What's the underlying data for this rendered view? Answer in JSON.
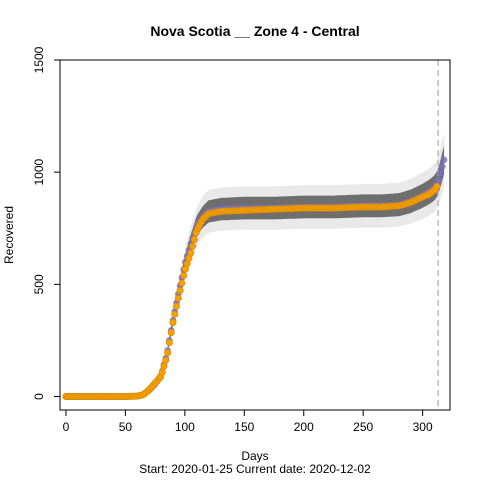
{
  "chart_data": {
    "type": "scatter",
    "title": "Nova Scotia __ Zone 4 - Central",
    "xlabel": "Days",
    "ylabel": "Recovered",
    "subtitle": "Start:  2020-01-25    Current date:  2020-12-02",
    "xlim": [
      -5,
      323
    ],
    "ylim": [
      -60,
      1500
    ],
    "x_ticks": [
      0,
      50,
      100,
      150,
      200,
      250,
      300
    ],
    "y_ticks": [
      0,
      500,
      1000,
      1500
    ],
    "grid": false,
    "current_day_marker": 313,
    "colors": {
      "observed": "#f5a000",
      "observed_edge": "#d88a00",
      "fitted": "#7b72b8",
      "band_outer": "#d7d7d7",
      "band_inner": "#6e6e6e",
      "marker_line": "#bbbbbb"
    },
    "series": [
      {
        "x": [
          0,
          10,
          20,
          30,
          40,
          50,
          60,
          65,
          70,
          75,
          80,
          85,
          90,
          95,
          100,
          105,
          110,
          115,
          120,
          130,
          150,
          175,
          200,
          225,
          250,
          265,
          280,
          290,
          300,
          305,
          310,
          313,
          318
        ],
        "values": [
          0,
          0,
          0,
          0,
          0,
          0,
          2,
          8,
          30,
          60,
          90,
          180,
          330,
          450,
          560,
          640,
          740,
          790,
          815,
          825,
          830,
          835,
          840,
          840,
          845,
          845,
          850,
          865,
          890,
          900,
          920,
          945,
          1050
        ]
      },
      {
        "x": [
          0,
          10,
          20,
          30,
          40,
          50,
          60,
          65,
          70,
          75,
          80,
          85,
          90,
          95,
          100,
          105,
          110,
          115,
          120,
          130,
          150,
          175,
          200,
          225,
          250,
          265,
          280,
          290,
          300,
          305,
          310,
          313,
          318
        ],
        "values": [
          0,
          0,
          0,
          0,
          0,
          0,
          2,
          8,
          28,
          55,
          95,
          190,
          340,
          470,
          590,
          680,
          760,
          800,
          825,
          835,
          840,
          840,
          845,
          845,
          850,
          850,
          855,
          870,
          895,
          910,
          930,
          955,
          1055
        ]
      }
    ]
  }
}
